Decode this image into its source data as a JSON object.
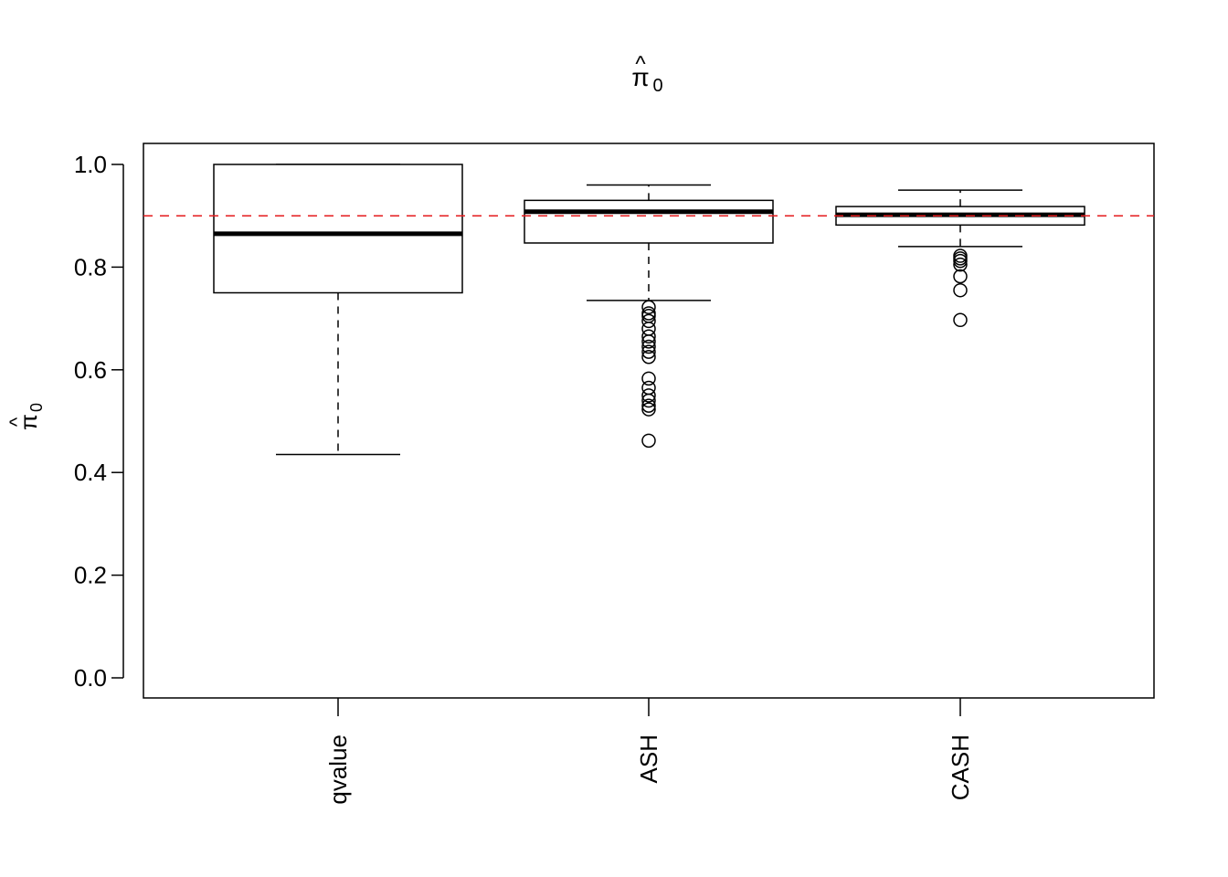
{
  "chart_data": {
    "type": "boxplot",
    "title": "π̂₀",
    "title_main": "π",
    "title_sub": "0",
    "ylabel_main": "π",
    "ylabel_sub": "0",
    "xlabel": "",
    "ylim": [
      0.0,
      1.0
    ],
    "yticks": [
      0.0,
      0.2,
      0.4,
      0.6,
      0.8,
      1.0
    ],
    "ytick_labels": [
      "0.0",
      "0.2",
      "0.4",
      "0.6",
      "0.8",
      "1.0"
    ],
    "categories": [
      "qvalue",
      "ASH",
      "CASH"
    ],
    "boxes": [
      {
        "name": "qvalue",
        "whisker_low": 0.435,
        "q1": 0.75,
        "median": 0.865,
        "q3": 1.0,
        "whisker_high": 1.0,
        "outliers": []
      },
      {
        "name": "ASH",
        "whisker_low": 0.735,
        "q1": 0.847,
        "median": 0.908,
        "q3": 0.93,
        "whisker_high": 0.96,
        "outliers": [
          0.722,
          0.71,
          0.705,
          0.695,
          0.68,
          0.665,
          0.655,
          0.645,
          0.635,
          0.625,
          0.583,
          0.565,
          0.55,
          0.54,
          0.53,
          0.523,
          0.462
        ]
      },
      {
        "name": "CASH",
        "whisker_low": 0.84,
        "q1": 0.882,
        "median": 0.902,
        "q3": 0.918,
        "whisker_high": 0.95,
        "outliers": [
          0.822,
          0.817,
          0.812,
          0.805,
          0.782,
          0.755,
          0.697
        ]
      }
    ],
    "reference_line": {
      "y": 0.9,
      "style": "dashed",
      "color": "#e41a1c"
    },
    "grid": false,
    "box_color": "#000000"
  }
}
